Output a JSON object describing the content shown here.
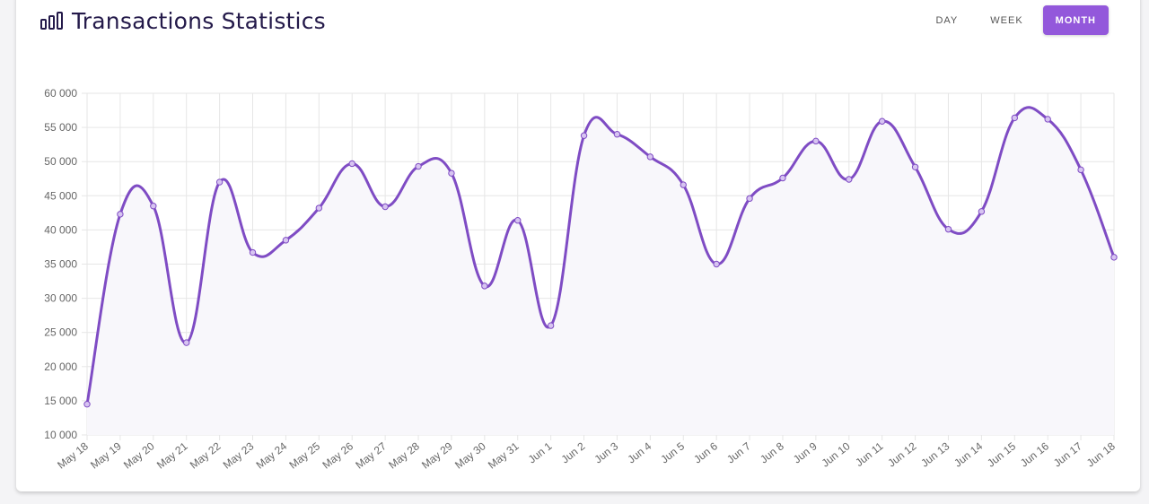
{
  "header": {
    "title": "Transactions Statistics",
    "icon": "bar-chart-icon"
  },
  "tabs": [
    {
      "label": "DAY",
      "active": false
    },
    {
      "label": "WEEK",
      "active": false
    },
    {
      "label": "MONTH",
      "active": true
    }
  ],
  "colors": {
    "accent": "#9358db",
    "line": "#7f4cc4",
    "fill": "#f8f7fb",
    "grid": "#e6e6e6",
    "title": "#241a4a"
  },
  "chart_data": {
    "type": "area",
    "title": "",
    "xlabel": "",
    "ylabel": "",
    "ylim": [
      10000,
      60000
    ],
    "y_ticks": [
      "60 000",
      "55 000",
      "50 000",
      "45 000",
      "40 000",
      "35 000",
      "30 000",
      "25 000",
      "20 000",
      "15 000",
      "10 000"
    ],
    "grid": true,
    "categories": [
      "May 18",
      "May 19",
      "May 20",
      "May 21",
      "May 22",
      "May 23",
      "May 24",
      "May 25",
      "May 26",
      "May 27",
      "May 28",
      "May 29",
      "May 30",
      "May 31",
      "Jun 1",
      "Jun 2",
      "Jun 3",
      "Jun 4",
      "Jun 5",
      "Jun 6",
      "Jun 7",
      "Jun 8",
      "Jun 9",
      "Jun 10",
      "Jun 11",
      "Jun 12",
      "Jun 13",
      "Jun 14",
      "Jun 15",
      "Jun 16",
      "Jun 17",
      "Jun 18"
    ],
    "series": [
      {
        "values": [
          14500,
          42300,
          43500,
          23500,
          47000,
          36700,
          38500,
          43200,
          49700,
          43400,
          49300,
          48300,
          31800,
          41400,
          26000,
          53800,
          54000,
          50700,
          46600,
          35000,
          44600,
          47600,
          53000,
          47400,
          55900,
          49200,
          40100,
          42700,
          56400,
          56200,
          48800,
          36000
        ]
      }
    ]
  }
}
